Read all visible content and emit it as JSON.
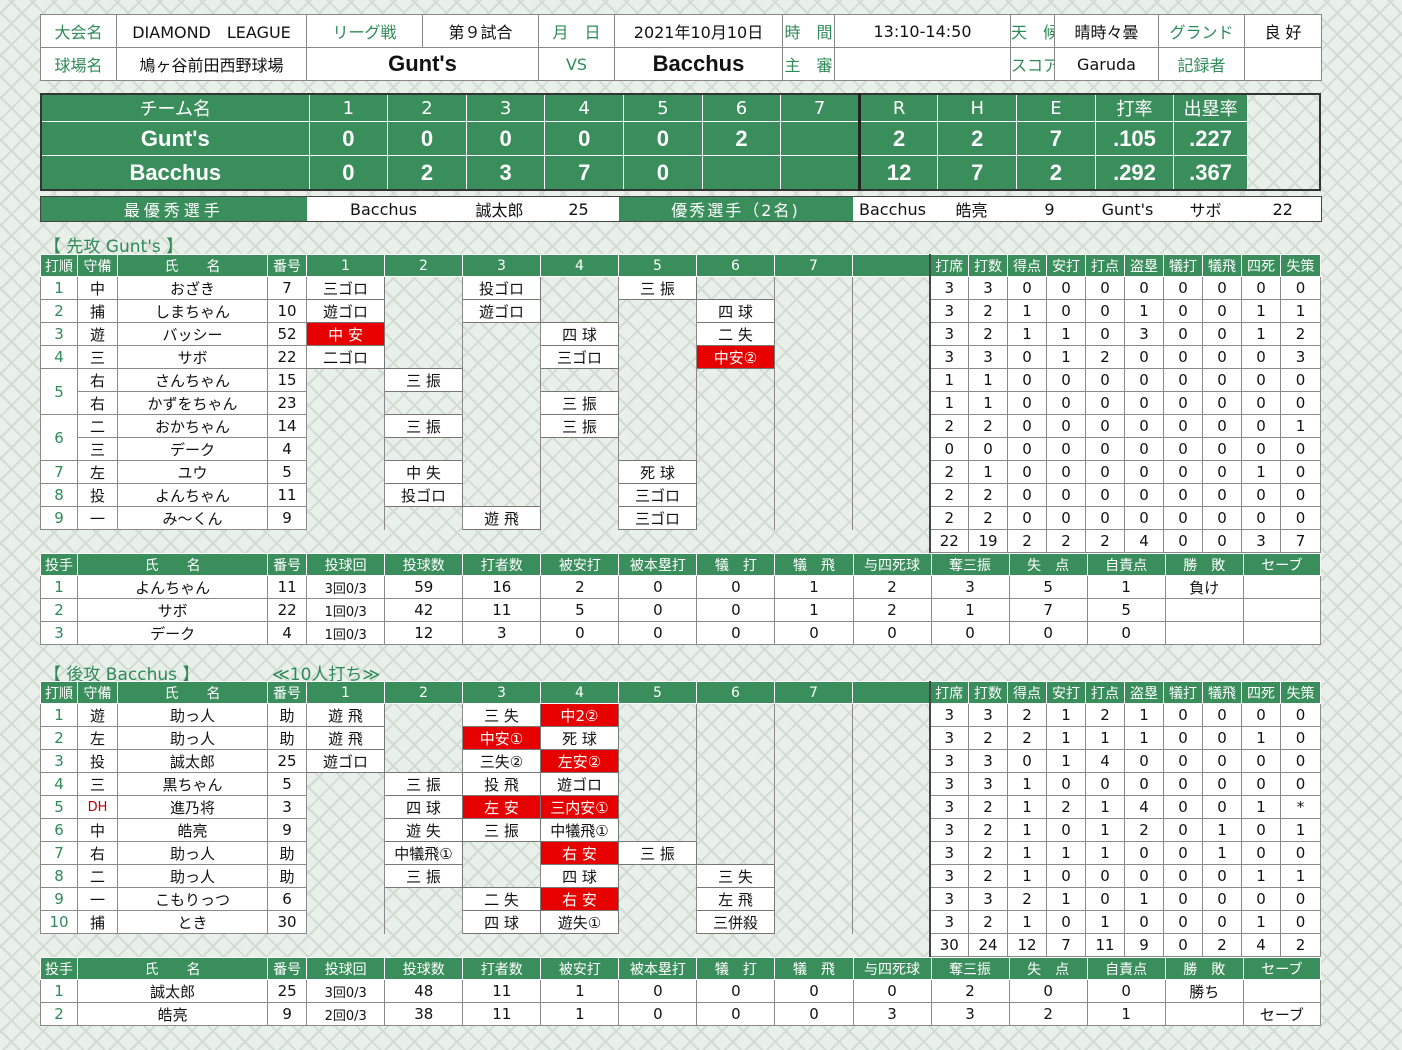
{
  "header": {
    "tournament_label": "大会名",
    "tournament": "DIAMOND　LEAGUE",
    "league_label": "リーグ戦",
    "game_no": "第９試合",
    "date_label": "月　日",
    "date": "2021年10月10日",
    "time_label": "時　間",
    "time": "13:10-14:50",
    "weather_label": "天　候",
    "weather": "晴時々曇",
    "ground_label": "グランド",
    "ground": "良 好",
    "venue_label": "球場名",
    "venue": "鳩ヶ谷前田西野球場",
    "team_away": "Gunt's",
    "vs": "VS",
    "team_home": "Bacchus",
    "umpire_label": "主　審",
    "umpire": "",
    "scorer_label": "スコア",
    "scorer": "Garuda",
    "recorder_label": "記録者",
    "recorder": ""
  },
  "scoreboard": {
    "headers": [
      "チーム名",
      "1",
      "2",
      "3",
      "4",
      "5",
      "6",
      "7",
      "R",
      "H",
      "E",
      "打率",
      "出塁率"
    ],
    "rows": [
      {
        "team": "Gunt's",
        "innings": [
          "0",
          "0",
          "0",
          "0",
          "0",
          "2",
          ""
        ],
        "R": "2",
        "H": "2",
        "E": "7",
        "avg": ".105",
        "obp": ".227"
      },
      {
        "team": "Bacchus",
        "innings": [
          "0",
          "2",
          "3",
          "7",
          "0",
          "",
          ""
        ],
        "R": "12",
        "H": "7",
        "E": "2",
        "avg": ".292",
        "obp": ".367"
      }
    ]
  },
  "awards": {
    "mvp_label": "最優秀選手",
    "mvp_team": "Bacchus",
    "mvp_name": "誠太郎",
    "mvp_no": "25",
    "excellent_label": "優秀選手（2名)",
    "ex1_team": "Bacchus",
    "ex1_name": "皓亮",
    "ex1_no": "9",
    "ex2_team": "Gunt's",
    "ex2_name": "サボ",
    "ex2_no": "22"
  },
  "batting_headers": [
    "打順",
    "守備",
    "氏　　名",
    "番号",
    "1",
    "2",
    "3",
    "4",
    "5",
    "6",
    "7",
    "",
    "打席",
    "打数",
    "得点",
    "安打",
    "打点",
    "盗塁",
    "犠打",
    "犠飛",
    "四死",
    "失策"
  ],
  "pitching_headers": [
    "投手",
    "氏　　名",
    "番号",
    "投球回",
    "投球数",
    "打者数",
    "被安打",
    "被本塁打",
    "犠　打",
    "犠　飛",
    "与四死球",
    "奪三振",
    "失　点",
    "自責点",
    "勝　敗",
    "セーブ"
  ],
  "away": {
    "section_title": "【 先攻 Gunt's 】",
    "section_note": "",
    "rows": [
      {
        "order": "1",
        "pos": "中",
        "name": "おざき",
        "no": "7",
        "inn": [
          "三ゴロ",
          "",
          "投ゴロ",
          "",
          "三 振",
          "",
          ""
        ],
        "stats": [
          "3",
          "3",
          "0",
          "0",
          "0",
          "0",
          "0",
          "0",
          "0",
          "0"
        ]
      },
      {
        "order": "2",
        "pos": "捕",
        "name": "しまちゃん",
        "no": "10",
        "inn": [
          "遊ゴロ",
          "",
          "遊ゴロ",
          "",
          "",
          "四 球",
          ""
        ],
        "stats": [
          "3",
          "2",
          "1",
          "0",
          "0",
          "1",
          "0",
          "0",
          "1",
          "1"
        ]
      },
      {
        "order": "3",
        "pos": "遊",
        "name": "バッシー",
        "no": "52",
        "inn": [
          "中 安",
          "",
          "",
          "四 球",
          "",
          "二 失",
          ""
        ],
        "red": [
          0
        ],
        "stats": [
          "3",
          "2",
          "1",
          "1",
          "0",
          "3",
          "0",
          "0",
          "1",
          "2"
        ]
      },
      {
        "order": "4",
        "pos": "三",
        "name": "サボ",
        "no": "22",
        "inn": [
          "二ゴロ",
          "",
          "",
          "三ゴロ",
          "",
          "中安②",
          ""
        ],
        "red": [
          5
        ],
        "stats": [
          "3",
          "3",
          "0",
          "1",
          "2",
          "0",
          "0",
          "0",
          "0",
          "3"
        ]
      },
      {
        "order": "5",
        "pos": "右",
        "name": "さんちゃん",
        "no": "15",
        "inn": [
          "",
          "三 振",
          "",
          "",
          "",
          "",
          ""
        ],
        "stats": [
          "1",
          "1",
          "0",
          "0",
          "0",
          "0",
          "0",
          "0",
          "0",
          "0"
        ]
      },
      {
        "order": "",
        "pos": "右",
        "name": "かずをちゃん",
        "no": "23",
        "inn": [
          "",
          "",
          "",
          "三 振",
          "",
          "",
          ""
        ],
        "stats": [
          "1",
          "1",
          "0",
          "0",
          "0",
          "0",
          "0",
          "0",
          "0",
          "0"
        ]
      },
      {
        "order": "6",
        "pos": "二",
        "name": "おかちゃん",
        "no": "14",
        "inn": [
          "",
          "三 振",
          "",
          "三 振",
          "",
          "",
          ""
        ],
        "stats": [
          "2",
          "2",
          "0",
          "0",
          "0",
          "0",
          "0",
          "0",
          "0",
          "1"
        ]
      },
      {
        "order": "",
        "pos": "三",
        "name": "デーク",
        "no": "4",
        "inn": [
          "",
          "",
          "",
          "",
          "",
          "",
          ""
        ],
        "stats": [
          "0",
          "0",
          "0",
          "0",
          "0",
          "0",
          "0",
          "0",
          "0",
          "0"
        ]
      },
      {
        "order": "7",
        "pos": "左",
        "name": "ユウ",
        "no": "5",
        "inn": [
          "",
          "中 失",
          "",
          "",
          "死 球",
          "",
          ""
        ],
        "stats": [
          "2",
          "1",
          "0",
          "0",
          "0",
          "0",
          "0",
          "0",
          "1",
          "0"
        ]
      },
      {
        "order": "8",
        "pos": "投",
        "name": "よんちゃん",
        "no": "11",
        "inn": [
          "",
          "投ゴロ",
          "",
          "",
          "三ゴロ",
          "",
          ""
        ],
        "stats": [
          "2",
          "2",
          "0",
          "0",
          "0",
          "0",
          "0",
          "0",
          "0",
          "0"
        ]
      },
      {
        "order": "9",
        "pos": "一",
        "name": "み～くん",
        "no": "9",
        "inn": [
          "",
          "",
          "遊 飛",
          "",
          "三ゴロ",
          "",
          ""
        ],
        "stats": [
          "2",
          "2",
          "0",
          "0",
          "0",
          "0",
          "0",
          "0",
          "0",
          "0"
        ]
      }
    ],
    "totals": [
      "22",
      "19",
      "2",
      "2",
      "2",
      "4",
      "0",
      "0",
      "3",
      "7"
    ],
    "pitchers": [
      {
        "order": "1",
        "name": "よんちゃん",
        "no": "11",
        "ip": "3回0/3",
        "np": "59",
        "bf": "16",
        "h": "2",
        "hr": "0",
        "sh": "0",
        "sf": "1",
        "bb": "2",
        "so": "3",
        "r": "5",
        "er": "1",
        "wl": "負け",
        "sv": ""
      },
      {
        "order": "2",
        "name": "サボ",
        "no": "22",
        "ip": "1回0/3",
        "np": "42",
        "bf": "11",
        "h": "5",
        "hr": "0",
        "sh": "0",
        "sf": "1",
        "bb": "2",
        "so": "1",
        "r": "7",
        "er": "5",
        "wl": "",
        "sv": ""
      },
      {
        "order": "3",
        "name": "デーク",
        "no": "4",
        "ip": "1回0/3",
        "np": "12",
        "bf": "3",
        "h": "0",
        "hr": "0",
        "sh": "0",
        "sf": "0",
        "bb": "0",
        "so": "0",
        "r": "0",
        "er": "0",
        "wl": "",
        "sv": ""
      }
    ]
  },
  "home": {
    "section_title": "【 後攻 Bacchus 】",
    "section_note": "≪10人打ち≫",
    "rows": [
      {
        "order": "1",
        "pos": "遊",
        "name": "助っ人",
        "no": "助",
        "inn": [
          "遊 飛",
          "",
          "三 失",
          "中2②",
          "",
          "",
          ""
        ],
        "red": [
          3
        ],
        "stats": [
          "3",
          "3",
          "2",
          "1",
          "2",
          "1",
          "0",
          "0",
          "0",
          "0"
        ]
      },
      {
        "order": "2",
        "pos": "左",
        "name": "助っ人",
        "no": "助",
        "inn": [
          "遊 飛",
          "",
          "中安①",
          "死 球",
          "",
          "",
          ""
        ],
        "red": [
          2
        ],
        "stats": [
          "3",
          "2",
          "2",
          "1",
          "1",
          "1",
          "0",
          "0",
          "1",
          "0"
        ]
      },
      {
        "order": "3",
        "pos": "投",
        "name": "誠太郎",
        "no": "25",
        "inn": [
          "遊ゴロ",
          "",
          "三失②",
          "左安②",
          "",
          "",
          ""
        ],
        "red": [
          3
        ],
        "stats": [
          "3",
          "3",
          "0",
          "1",
          "4",
          "0",
          "0",
          "0",
          "0",
          "0"
        ]
      },
      {
        "order": "4",
        "pos": "三",
        "name": "黒ちゃん",
        "no": "5",
        "inn": [
          "",
          "三 振",
          "投 飛",
          "遊ゴロ",
          "",
          "",
          ""
        ],
        "stats": [
          "3",
          "3",
          "1",
          "0",
          "0",
          "0",
          "0",
          "0",
          "0",
          "0"
        ]
      },
      {
        "order": "5",
        "pos": "DH",
        "name": "進乃将",
        "no": "3",
        "inn": [
          "",
          "四 球",
          "左 安",
          "三内安①",
          "",
          "",
          ""
        ],
        "red": [
          2,
          3
        ],
        "stats": [
          "3",
          "2",
          "1",
          "2",
          "1",
          "4",
          "0",
          "0",
          "1",
          "*"
        ]
      },
      {
        "order": "6",
        "pos": "中",
        "name": "皓亮",
        "no": "9",
        "inn": [
          "",
          "遊 失",
          "三 振",
          "中犠飛①",
          "",
          "",
          ""
        ],
        "stats": [
          "3",
          "2",
          "1",
          "0",
          "1",
          "2",
          "0",
          "1",
          "0",
          "1"
        ]
      },
      {
        "order": "7",
        "pos": "右",
        "name": "助っ人",
        "no": "助",
        "inn": [
          "",
          "中犠飛①",
          "",
          "右 安",
          "三 振",
          "",
          ""
        ],
        "red": [
          3
        ],
        "stats": [
          "3",
          "2",
          "1",
          "1",
          "1",
          "0",
          "0",
          "1",
          "0",
          "0"
        ]
      },
      {
        "order": "8",
        "pos": "二",
        "name": "助っ人",
        "no": "助",
        "inn": [
          "",
          "三 振",
          "",
          "四 球",
          "",
          "三 失",
          ""
        ],
        "stats": [
          "3",
          "2",
          "1",
          "0",
          "0",
          "0",
          "0",
          "0",
          "1",
          "1"
        ]
      },
      {
        "order": "9",
        "pos": "一",
        "name": "こもりっつ",
        "no": "6",
        "inn": [
          "",
          "",
          "二 失",
          "右 安",
          "",
          "左 飛",
          ""
        ],
        "red": [
          3
        ],
        "stats": [
          "3",
          "3",
          "2",
          "1",
          "0",
          "1",
          "0",
          "0",
          "0",
          "0"
        ]
      },
      {
        "order": "10",
        "pos": "捕",
        "name": "とき",
        "no": "30",
        "inn": [
          "",
          "",
          "四 球",
          "遊失①",
          "",
          "三併殺",
          ""
        ],
        "stats": [
          "3",
          "2",
          "1",
          "0",
          "1",
          "0",
          "0",
          "0",
          "1",
          "0"
        ]
      }
    ],
    "totals": [
      "30",
      "24",
      "12",
      "7",
      "11",
      "9",
      "0",
      "2",
      "4",
      "2"
    ],
    "pitchers": [
      {
        "order": "1",
        "name": "誠太郎",
        "no": "25",
        "ip": "3回0/3",
        "np": "48",
        "bf": "11",
        "h": "1",
        "hr": "0",
        "sh": "0",
        "sf": "0",
        "bb": "0",
        "so": "2",
        "r": "0",
        "er": "0",
        "wl": "勝ち",
        "sv": ""
      },
      {
        "order": "2",
        "name": "皓亮",
        "no": "9",
        "ip": "2回0/3",
        "np": "38",
        "bf": "11",
        "h": "1",
        "hr": "0",
        "sh": "0",
        "sf": "0",
        "bb": "3",
        "so": "3",
        "r": "2",
        "er": "1",
        "wl": "",
        "sv": "セーブ"
      }
    ]
  },
  "colors": {
    "green": "#3a8e5c",
    "red": "#e60000",
    "text_green": "#2e8b57"
  }
}
